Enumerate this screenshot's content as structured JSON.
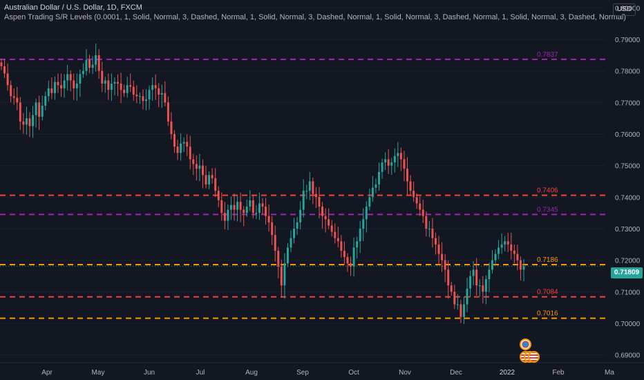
{
  "header": {
    "title": "Australian Dollar / U.S. Dollar, 1D, FXCM",
    "indicator": "Aspen Trading S/R Levels (0.0001, 1, Solid, Normal, 3, Dashed, Normal, 1, Solid, Normal, 3, Dashed, Normal, 1, Solid, Normal, 3, Dashed, Normal, 1, Solid, Normal, 3, Dashed, Normal)"
  },
  "currency": "USD",
  "last_price": "0.71809",
  "colors": {
    "background": "#131722",
    "up": "#26a69a",
    "down": "#ef5350",
    "purple": "#9c27b0",
    "red": "#f44336",
    "orange": "#ff9800",
    "axis_text": "#b2b5be"
  },
  "chart_data": {
    "type": "candlestick",
    "ylim": [
      0.6875,
      0.8025
    ],
    "y_ticks": [
      "0.80000",
      "0.79000",
      "0.78000",
      "0.77000",
      "0.76000",
      "0.75000",
      "0.74000",
      "0.73000",
      "0.72000",
      "0.71000",
      "0.70000",
      "0.69000"
    ],
    "x_ticks": [
      "Apr",
      "May",
      "Jun",
      "Jul",
      "Aug",
      "Sep",
      "Oct",
      "Nov",
      "Dec",
      "2022",
      "Feb",
      "Ma"
    ],
    "levels": [
      {
        "value": 0.7837,
        "label": "0.7837",
        "color": "#9c27b0"
      },
      {
        "value": 0.7406,
        "label": "0.7406",
        "color": "#f44336"
      },
      {
        "value": 0.7345,
        "label": "0.7345",
        "color": "#9c27b0"
      },
      {
        "value": 0.7186,
        "label": "0.7186",
        "color": "#ff9800"
      },
      {
        "value": 0.7084,
        "label": "0.7084",
        "color": "#f44336"
      },
      {
        "value": 0.7016,
        "label": "0.7016",
        "color": "#ff9800"
      }
    ],
    "series": [
      {
        "values": [
          0.7815,
          0.7792,
          0.7755,
          0.772,
          0.7715,
          0.77,
          0.764,
          0.763,
          0.765,
          0.7625,
          0.766,
          0.77,
          0.7655,
          0.769,
          0.772,
          0.7745,
          0.773,
          0.7765,
          0.7755,
          0.7745,
          0.777,
          0.779,
          0.777,
          0.7745,
          0.776,
          0.779,
          0.78,
          0.7835,
          0.781,
          0.782,
          0.785,
          0.78,
          0.776,
          0.777,
          0.774,
          0.776,
          0.7765,
          0.776,
          0.774,
          0.773,
          0.7755,
          0.775,
          0.7725,
          0.772,
          0.772,
          0.7705,
          0.771,
          0.774,
          0.7755,
          0.7745,
          0.7725,
          0.773,
          0.77,
          0.764,
          0.76,
          0.756,
          0.754,
          0.757,
          0.7575,
          0.756,
          0.752,
          0.7505,
          0.749,
          0.75,
          0.747,
          0.744,
          0.747,
          0.746,
          0.742,
          0.739,
          0.735,
          0.7325,
          0.736,
          0.7375,
          0.736,
          0.7385,
          0.736,
          0.735,
          0.737,
          0.739,
          0.735,
          0.735,
          0.738,
          0.737,
          0.734,
          0.732,
          0.728,
          0.723,
          0.718,
          0.712,
          0.719,
          0.724,
          0.727,
          0.73,
          0.732,
          0.736,
          0.742,
          0.742,
          0.745,
          0.741,
          0.74,
          0.737,
          0.734,
          0.733,
          0.731,
          0.729,
          0.727,
          0.726,
          0.723,
          0.721,
          0.719,
          0.718,
          0.724,
          0.726,
          0.73,
          0.733,
          0.737,
          0.74,
          0.743,
          0.744,
          0.748,
          0.751,
          0.752,
          0.75,
          0.751,
          0.753,
          0.754,
          0.752,
          0.749,
          0.745,
          0.742,
          0.74,
          0.738,
          0.736,
          0.734,
          0.73,
          0.73,
          0.727,
          0.725,
          0.722,
          0.72,
          0.717,
          0.712,
          0.71,
          0.706,
          0.706,
          0.702,
          0.706,
          0.711,
          0.715,
          0.717,
          0.712,
          0.712,
          0.71,
          0.714,
          0.717,
          0.72,
          0.722,
          0.724,
          0.725,
          0.726,
          0.725,
          0.723,
          0.722,
          0.72,
          0.717,
          0.7181
        ]
      }
    ]
  }
}
